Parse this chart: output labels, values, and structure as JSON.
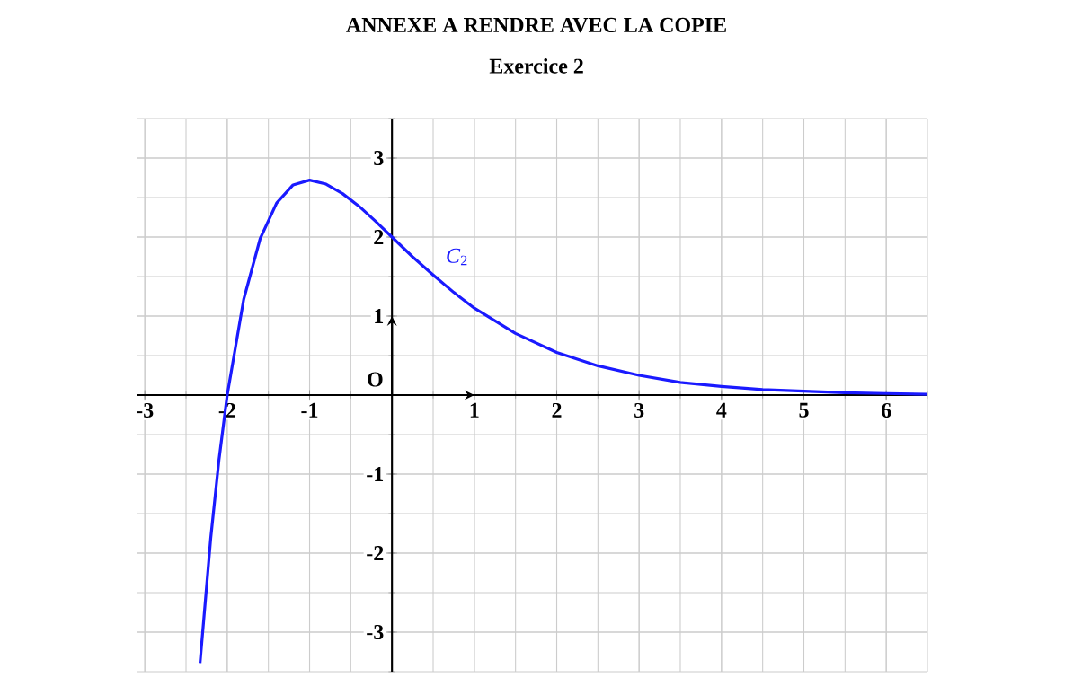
{
  "chart_data": {
    "type": "line",
    "title": "ANNEXE A RENDRE AVEC LA COPIE",
    "subtitle": "Exercice 2",
    "xlim": [
      -3.1,
      6.5
    ],
    "ylim": [
      -3.5,
      3.5
    ],
    "xticks": [
      -3,
      -2,
      -1,
      1,
      2,
      3,
      4,
      5,
      6
    ],
    "yticks": [
      -3,
      -2,
      -1,
      1,
      2,
      3
    ],
    "grid": true,
    "marker": "none",
    "line_style": "solid",
    "annotations": [
      "*C*$_{2}$",
      "O"
    ],
    "series": [
      {
        "color": "#1a1aff",
        "x": [
          -2.33,
          -2.2,
          -2.1,
          -2,
          -1.8,
          -1.6,
          -1.4,
          -1.2,
          -1,
          -0.8,
          -0.6,
          -0.4,
          -0.2,
          0,
          0.25,
          0.5,
          0.75,
          1,
          1.5,
          2,
          2.5,
          3,
          3.5,
          4,
          4.5,
          5,
          5.5,
          6,
          6.5
        ],
        "values": [
          -3.39,
          -1.81,
          -0.82,
          0,
          1.21,
          1.98,
          2.43,
          2.66,
          2.72,
          2.67,
          2.55,
          2.39,
          2.2,
          2,
          1.75,
          1.52,
          1.3,
          1.1,
          0.78,
          0.54,
          0.37,
          0.25,
          0.16,
          0.11,
          0.07,
          0.05,
          0.03,
          0.02,
          0.01
        ]
      }
    ]
  }
}
